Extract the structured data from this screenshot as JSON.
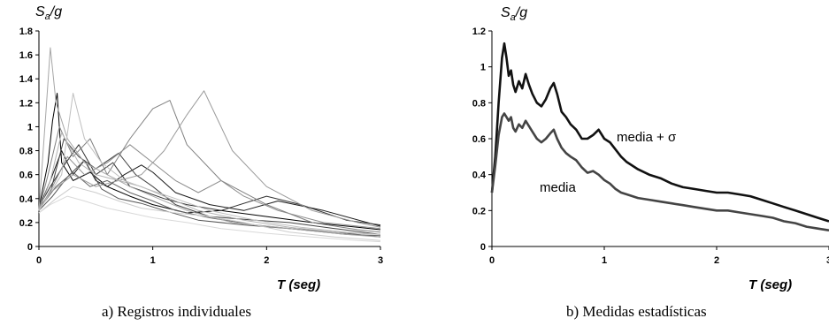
{
  "chart_data": [
    {
      "type": "line",
      "caption": "a) Registros individuales",
      "ylabel": "S",
      "ylabel_sub": "a",
      "ylabel_tail": "/g",
      "xlabel": "T (seg)",
      "xlim": [
        0,
        3
      ],
      "ylim": [
        0,
        1.8
      ],
      "xticks": [
        "0",
        "1",
        "2",
        "3"
      ],
      "yticks": [
        "0",
        "0.2",
        "0.4",
        "0.6",
        "0.8",
        "1",
        "1.2",
        "1.4",
        "1.6",
        "1.8"
      ],
      "series": [
        {
          "color": "#000000",
          "x": [
            0,
            0.08,
            0.12,
            0.16,
            0.2,
            0.3,
            0.45,
            0.6,
            0.8,
            1.0,
            1.3,
            1.6,
            2.0,
            2.4,
            2.8,
            3.0
          ],
          "y": [
            0.32,
            0.7,
            1.05,
            1.28,
            0.7,
            0.55,
            0.62,
            0.5,
            0.42,
            0.35,
            0.28,
            0.3,
            0.25,
            0.2,
            0.16,
            0.14
          ]
        },
        {
          "color": "#1a1a1a",
          "x": [
            0,
            0.1,
            0.2,
            0.3,
            0.4,
            0.5,
            0.6,
            0.75,
            0.9,
            1.0,
            1.2,
            1.5,
            1.8,
            2.1,
            2.5,
            3.0
          ],
          "y": [
            0.32,
            0.55,
            0.8,
            0.6,
            0.72,
            0.55,
            0.5,
            0.6,
            0.68,
            0.62,
            0.45,
            0.35,
            0.3,
            0.38,
            0.3,
            0.17
          ]
        },
        {
          "color": "#333333",
          "x": [
            0,
            0.1,
            0.2,
            0.35,
            0.5,
            0.65,
            0.8,
            0.95,
            1.1,
            1.3,
            1.6,
            2.0,
            2.3,
            2.7,
            3.0
          ],
          "y": [
            0.33,
            0.5,
            0.65,
            0.85,
            0.6,
            0.7,
            0.5,
            0.45,
            0.4,
            0.35,
            0.3,
            0.42,
            0.35,
            0.22,
            0.18
          ]
        },
        {
          "color": "#444444",
          "x": [
            0,
            0.1,
            0.22,
            0.35,
            0.5,
            0.7,
            0.85,
            1.0,
            1.2,
            1.5,
            1.9,
            2.2,
            2.6,
            3.0
          ],
          "y": [
            0.32,
            0.45,
            0.9,
            0.75,
            0.65,
            0.78,
            0.6,
            0.5,
            0.35,
            0.25,
            0.22,
            0.2,
            0.15,
            0.1
          ]
        },
        {
          "color": "#555555",
          "x": [
            0,
            0.12,
            0.25,
            0.4,
            0.55,
            0.7,
            0.9,
            1.1,
            1.4,
            1.8,
            2.2,
            2.6,
            3.0
          ],
          "y": [
            0.3,
            0.42,
            0.58,
            0.72,
            0.48,
            0.4,
            0.36,
            0.3,
            0.22,
            0.18,
            0.15,
            0.12,
            0.08
          ]
        },
        {
          "color": "#666666",
          "x": [
            0,
            0.15,
            0.3,
            0.45,
            0.6,
            0.8,
            1.0,
            1.2,
            1.5,
            1.9,
            2.3,
            2.7,
            3.0
          ],
          "y": [
            0.31,
            0.5,
            0.62,
            0.5,
            0.55,
            0.45,
            0.38,
            0.3,
            0.24,
            0.18,
            0.14,
            0.1,
            0.09
          ]
        },
        {
          "color": "#808080",
          "x": [
            0,
            0.08,
            0.18,
            0.3,
            0.45,
            0.6,
            0.8,
            1.0,
            1.15,
            1.3,
            1.6,
            2.0,
            2.4,
            2.8,
            3.0
          ],
          "y": [
            0.3,
            0.6,
            1.0,
            0.75,
            0.9,
            0.6,
            0.9,
            1.15,
            1.22,
            0.85,
            0.55,
            0.35,
            0.2,
            0.14,
            0.12
          ]
        },
        {
          "color": "#8c8c8c",
          "x": [
            0,
            0.12,
            0.25,
            0.4,
            0.6,
            0.8,
            1.0,
            1.2,
            1.4,
            1.6,
            1.8,
            2.1,
            2.5,
            3.0
          ],
          "y": [
            0.3,
            0.5,
            0.75,
            0.6,
            0.7,
            0.85,
            0.7,
            0.55,
            0.45,
            0.55,
            0.42,
            0.3,
            0.2,
            0.15
          ]
        },
        {
          "color": "#999999",
          "x": [
            0,
            0.1,
            0.3,
            0.5,
            0.7,
            0.9,
            1.1,
            1.3,
            1.45,
            1.55,
            1.7,
            2.0,
            2.4,
            2.8,
            3.0
          ],
          "y": [
            0.3,
            0.45,
            0.6,
            0.5,
            0.55,
            0.6,
            0.8,
            1.1,
            1.3,
            1.1,
            0.8,
            0.5,
            0.3,
            0.2,
            0.16
          ]
        },
        {
          "color": "#a6a6a6",
          "x": [
            0,
            0.06,
            0.1,
            0.15,
            0.25,
            0.4,
            0.6,
            0.8,
            1.0,
            1.3,
            1.7,
            2.2,
            2.7,
            3.0
          ],
          "y": [
            0.3,
            1.1,
            1.66,
            1.2,
            0.9,
            0.7,
            0.6,
            0.5,
            0.42,
            0.3,
            0.2,
            0.15,
            0.1,
            0.08
          ]
        },
        {
          "color": "#b3b3b3",
          "x": [
            0,
            0.1,
            0.2,
            0.35,
            0.5,
            0.7,
            0.9,
            1.1,
            1.4,
            1.8,
            2.2,
            2.6,
            3.0
          ],
          "y": [
            0.3,
            0.55,
            0.95,
            0.7,
            0.6,
            0.55,
            0.5,
            0.42,
            0.3,
            0.22,
            0.16,
            0.12,
            0.1
          ]
        },
        {
          "color": "#bfbfbf",
          "x": [
            0,
            0.2,
            0.3,
            0.4,
            0.55,
            0.75,
            0.95,
            1.2,
            1.5,
            1.9,
            2.3,
            2.7,
            3.0
          ],
          "y": [
            0.3,
            0.6,
            1.28,
            0.9,
            0.7,
            0.55,
            0.48,
            0.4,
            0.3,
            0.22,
            0.16,
            0.12,
            0.1
          ]
        },
        {
          "color": "#cccccc",
          "x": [
            0,
            0.15,
            0.3,
            0.5,
            0.7,
            0.9,
            1.2,
            1.5,
            1.8,
            2.2,
            2.6,
            3.0
          ],
          "y": [
            0.28,
            0.4,
            0.5,
            0.45,
            0.38,
            0.32,
            0.28,
            0.25,
            0.2,
            0.12,
            0.08,
            0.05
          ]
        },
        {
          "color": "#d9d9d9",
          "x": [
            0,
            0.1,
            0.25,
            0.4,
            0.6,
            0.8,
            1.0,
            1.3,
            1.6,
            2.0,
            2.4,
            2.8,
            3.0
          ],
          "y": [
            0.28,
            0.35,
            0.42,
            0.38,
            0.32,
            0.28,
            0.24,
            0.2,
            0.15,
            0.11,
            0.08,
            0.05,
            0.04
          ]
        }
      ]
    },
    {
      "type": "line",
      "caption": "b) Medidas estadísticas",
      "ylabel": "S",
      "ylabel_sub": "a",
      "ylabel_tail": "/g",
      "xlabel": "T (seg)",
      "xlim": [
        0,
        3
      ],
      "ylim": [
        0,
        1.2
      ],
      "xticks": [
        "0",
        "1",
        "2",
        "3"
      ],
      "yticks": [
        "0",
        "0.2",
        "0.4",
        "0.6",
        "0.8",
        "1",
        "1.2"
      ],
      "series": [
        {
          "label": "media + σ",
          "color": "#111111",
          "x": [
            0,
            0.03,
            0.06,
            0.09,
            0.11,
            0.13,
            0.15,
            0.17,
            0.19,
            0.21,
            0.24,
            0.27,
            0.3,
            0.33,
            0.36,
            0.4,
            0.44,
            0.48,
            0.52,
            0.55,
            0.58,
            0.62,
            0.66,
            0.7,
            0.75,
            0.8,
            0.85,
            0.9,
            0.95,
            1.0,
            1.05,
            1.1,
            1.15,
            1.2,
            1.3,
            1.4,
            1.5,
            1.6,
            1.7,
            1.8,
            1.9,
            2.0,
            2.1,
            2.2,
            2.3,
            2.4,
            2.5,
            2.6,
            2.7,
            2.8,
            2.9,
            3.0
          ],
          "y": [
            0.3,
            0.5,
            0.8,
            1.05,
            1.13,
            1.05,
            0.95,
            0.98,
            0.9,
            0.86,
            0.92,
            0.88,
            0.96,
            0.9,
            0.85,
            0.8,
            0.78,
            0.82,
            0.88,
            0.91,
            0.85,
            0.75,
            0.72,
            0.68,
            0.65,
            0.6,
            0.6,
            0.62,
            0.65,
            0.6,
            0.58,
            0.54,
            0.5,
            0.47,
            0.43,
            0.4,
            0.38,
            0.35,
            0.33,
            0.32,
            0.31,
            0.3,
            0.3,
            0.29,
            0.28,
            0.26,
            0.24,
            0.22,
            0.2,
            0.18,
            0.16,
            0.14
          ]
        },
        {
          "label": "media",
          "color": "#444444",
          "x": [
            0,
            0.03,
            0.06,
            0.09,
            0.11,
            0.13,
            0.15,
            0.17,
            0.19,
            0.21,
            0.24,
            0.27,
            0.3,
            0.33,
            0.36,
            0.4,
            0.44,
            0.48,
            0.52,
            0.55,
            0.58,
            0.62,
            0.66,
            0.7,
            0.75,
            0.8,
            0.85,
            0.9,
            0.95,
            1.0,
            1.05,
            1.1,
            1.15,
            1.2,
            1.3,
            1.4,
            1.5,
            1.6,
            1.7,
            1.8,
            1.9,
            2.0,
            2.1,
            2.2,
            2.3,
            2.4,
            2.5,
            2.6,
            2.7,
            2.8,
            2.9,
            3.0
          ],
          "y": [
            0.3,
            0.45,
            0.62,
            0.72,
            0.74,
            0.72,
            0.7,
            0.72,
            0.66,
            0.64,
            0.68,
            0.66,
            0.7,
            0.67,
            0.64,
            0.6,
            0.58,
            0.6,
            0.63,
            0.65,
            0.6,
            0.55,
            0.52,
            0.5,
            0.48,
            0.44,
            0.41,
            0.42,
            0.4,
            0.37,
            0.35,
            0.32,
            0.3,
            0.29,
            0.27,
            0.26,
            0.25,
            0.24,
            0.23,
            0.22,
            0.21,
            0.2,
            0.2,
            0.19,
            0.18,
            0.17,
            0.16,
            0.14,
            0.13,
            0.11,
            0.1,
            0.09
          ]
        }
      ]
    }
  ]
}
